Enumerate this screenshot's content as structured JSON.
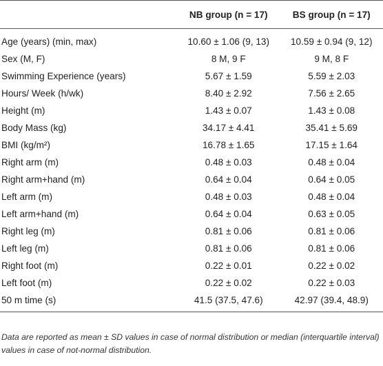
{
  "table": {
    "header": [
      "NB group (n = 17)",
      "BS group (n = 17)"
    ],
    "rows": [
      [
        "Age (years) (min, max)",
        "10.60 ± 1.06 (9, 13)",
        "10.59 ± 0.94 (9, 12)"
      ],
      [
        "Sex (M, F)",
        "8 M, 9 F",
        "9 M, 8 F"
      ],
      [
        "Swimming Experience (years)",
        "5.67 ± 1.59",
        "5.59 ± 2.03"
      ],
      [
        "Hours/ Week (h/wk)",
        "8.40 ± 2.92",
        "7.56 ± 2.65"
      ],
      [
        "Height (m)",
        "1.43 ± 0.07",
        "1.43 ± 0.08"
      ],
      [
        "Body Mass (kg)",
        "34.17 ± 4.41",
        "35.41 ± 5.69"
      ],
      [
        "BMI (kg/m²)",
        "16.78 ± 1.65",
        "17.15 ± 1.64"
      ],
      [
        "Right arm (m)",
        "0.48 ± 0.03",
        "0.48 ± 0.04"
      ],
      [
        "Right arm+hand (m)",
        "0.64 ± 0.04",
        "0.64 ± 0.05"
      ],
      [
        "Left arm (m)",
        "0.48 ± 0.03",
        "0.48 ± 0.04"
      ],
      [
        "Left arm+hand (m)",
        "0.64 ± 0.04",
        "0.63 ± 0.05"
      ],
      [
        "Right leg (m)",
        "0.81 ± 0.06",
        "0.81 ± 0.06"
      ],
      [
        "Left leg (m)",
        "0.81 ± 0.06",
        "0.81 ± 0.06"
      ],
      [
        "Right foot (m)",
        "0.22 ± 0.01",
        "0.22 ± 0.02"
      ],
      [
        "Left foot (m)",
        "0.22 ± 0.02",
        "0.22 ± 0.03"
      ],
      [
        "50 m time (s)",
        "41.5 (37.5, 47.6)",
        "42.97 (39.4, 48.9)"
      ]
    ]
  },
  "footnote": "Data are reported as mean ± SD values in case of normal distribution or median (interquartile interval) values in case of not-normal distribution."
}
